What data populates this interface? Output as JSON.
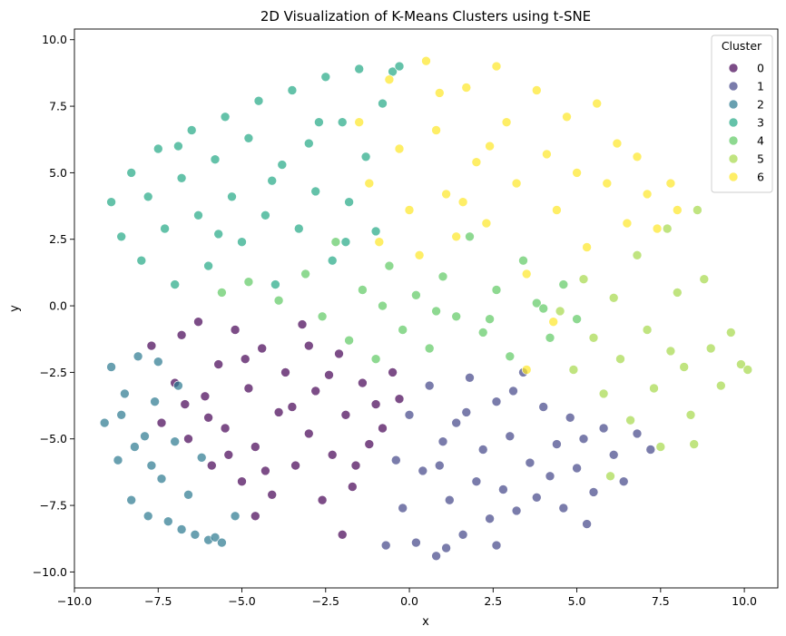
{
  "chart_data": {
    "type": "scatter",
    "title": "2D Visualization of K-Means Clusters using t-SNE",
    "xlabel": "x",
    "ylabel": "y",
    "xlim": [
      -10.0,
      11.0
    ],
    "ylim": [
      -10.6,
      10.4
    ],
    "xticks": [
      -10.0,
      -7.5,
      -5.0,
      -2.5,
      0.0,
      2.5,
      5.0,
      7.5,
      10.0
    ],
    "xtick_labels": [
      "−10.0",
      "−7.5",
      "−5.0",
      "−2.5",
      "0.0",
      "2.5",
      "5.0",
      "7.5",
      "10.0"
    ],
    "yticks": [
      -10.0,
      -7.5,
      -5.0,
      -2.5,
      0.0,
      2.5,
      5.0,
      7.5,
      10.0
    ],
    "ytick_labels": [
      "−10.0",
      "−7.5",
      "−5.0",
      "−2.5",
      "0.0",
      "2.5",
      "5.0",
      "7.5",
      "10.0"
    ],
    "grid": false,
    "legend": {
      "title": "Cluster",
      "placement": "top-right"
    },
    "series": [
      {
        "name": "0",
        "color": "#440154",
        "points": [
          [
            -7.7,
            -1.5
          ],
          [
            -7.4,
            -4.4
          ],
          [
            -7.0,
            -2.9
          ],
          [
            -6.8,
            -1.1
          ],
          [
            -6.6,
            -5.0
          ],
          [
            -6.3,
            -0.6
          ],
          [
            -6.1,
            -3.4
          ],
          [
            -5.9,
            -6.0
          ],
          [
            -5.7,
            -2.2
          ],
          [
            -5.5,
            -4.6
          ],
          [
            -5.2,
            -0.9
          ],
          [
            -5.0,
            -6.6
          ],
          [
            -4.8,
            -3.1
          ],
          [
            -4.6,
            -5.3
          ],
          [
            -4.4,
            -1.6
          ],
          [
            -4.1,
            -7.1
          ],
          [
            -3.9,
            -4.0
          ],
          [
            -3.7,
            -2.5
          ],
          [
            -3.4,
            -6.0
          ],
          [
            -3.2,
            -0.7
          ],
          [
            -3.0,
            -4.8
          ],
          [
            -2.8,
            -3.2
          ],
          [
            -2.6,
            -7.3
          ],
          [
            -2.3,
            -5.6
          ],
          [
            -2.1,
            -1.8
          ],
          [
            -1.9,
            -4.1
          ],
          [
            -1.7,
            -6.8
          ],
          [
            -1.4,
            -2.9
          ],
          [
            -1.2,
            -5.2
          ],
          [
            -1.0,
            -3.7
          ],
          [
            -0.8,
            -4.6
          ],
          [
            -0.5,
            -2.5
          ],
          [
            -0.3,
            -3.5
          ],
          [
            -6.0,
            -4.2
          ],
          [
            -4.9,
            -2.0
          ],
          [
            -3.5,
            -3.8
          ],
          [
            -2.4,
            -2.6
          ],
          [
            -5.4,
            -5.6
          ],
          [
            -4.3,
            -6.2
          ],
          [
            -6.7,
            -3.7
          ],
          [
            -3.0,
            -1.5
          ],
          [
            -1.6,
            -6.0
          ],
          [
            -2.0,
            -8.6
          ],
          [
            -4.6,
            -7.9
          ]
        ]
      },
      {
        "name": "1",
        "color": "#414487",
        "points": [
          [
            -0.4,
            -5.8
          ],
          [
            -0.2,
            -7.6
          ],
          [
            0.0,
            -4.1
          ],
          [
            0.2,
            -8.9
          ],
          [
            0.4,
            -6.2
          ],
          [
            0.6,
            -3.0
          ],
          [
            0.8,
            -9.4
          ],
          [
            1.0,
            -5.1
          ],
          [
            1.2,
            -7.3
          ],
          [
            1.4,
            -4.4
          ],
          [
            1.6,
            -8.6
          ],
          [
            1.8,
            -2.7
          ],
          [
            2.0,
            -6.6
          ],
          [
            2.2,
            -5.4
          ],
          [
            2.4,
            -8.0
          ],
          [
            2.6,
            -3.6
          ],
          [
            2.8,
            -6.9
          ],
          [
            3.0,
            -4.9
          ],
          [
            3.2,
            -7.7
          ],
          [
            3.4,
            -2.5
          ],
          [
            3.6,
            -5.9
          ],
          [
            3.8,
            -7.2
          ],
          [
            4.0,
            -3.8
          ],
          [
            4.2,
            -6.4
          ],
          [
            4.4,
            -5.2
          ],
          [
            4.6,
            -7.6
          ],
          [
            4.8,
            -4.2
          ],
          [
            5.0,
            -6.1
          ],
          [
            5.2,
            -5.0
          ],
          [
            5.5,
            -7.0
          ],
          [
            5.8,
            -4.6
          ],
          [
            6.1,
            -5.6
          ],
          [
            6.4,
            -6.6
          ],
          [
            6.8,
            -4.8
          ],
          [
            7.2,
            -5.4
          ],
          [
            1.1,
            -9.1
          ],
          [
            -0.7,
            -9.0
          ],
          [
            2.6,
            -9.0
          ],
          [
            0.9,
            -6.0
          ],
          [
            3.1,
            -3.2
          ],
          [
            1.7,
            -4.0
          ],
          [
            5.3,
            -8.2
          ]
        ]
      },
      {
        "name": "2",
        "color": "#2a788e",
        "points": [
          [
            -9.1,
            -4.4
          ],
          [
            -8.9,
            -2.3
          ],
          [
            -8.7,
            -5.8
          ],
          [
            -8.5,
            -3.3
          ],
          [
            -8.3,
            -7.3
          ],
          [
            -8.1,
            -1.9
          ],
          [
            -7.9,
            -4.9
          ],
          [
            -7.8,
            -7.9
          ],
          [
            -7.6,
            -3.6
          ],
          [
            -7.4,
            -6.5
          ],
          [
            -7.2,
            -8.1
          ],
          [
            -7.0,
            -5.1
          ],
          [
            -6.8,
            -8.4
          ],
          [
            -6.6,
            -7.1
          ],
          [
            -6.4,
            -8.6
          ],
          [
            -6.2,
            -5.7
          ],
          [
            -6.0,
            -8.8
          ],
          [
            -5.8,
            -8.7
          ],
          [
            -5.6,
            -8.9
          ],
          [
            -8.6,
            -4.1
          ],
          [
            -8.2,
            -5.3
          ],
          [
            -7.5,
            -2.1
          ],
          [
            -6.9,
            -3.0
          ],
          [
            -5.2,
            -7.9
          ],
          [
            -7.7,
            -6.0
          ]
        ]
      },
      {
        "name": "3",
        "color": "#22a884",
        "points": [
          [
            -8.9,
            3.9
          ],
          [
            -8.6,
            2.6
          ],
          [
            -8.3,
            5.0
          ],
          [
            -8.0,
            1.7
          ],
          [
            -7.8,
            4.1
          ],
          [
            -7.5,
            5.9
          ],
          [
            -7.3,
            2.9
          ],
          [
            -7.0,
            0.8
          ],
          [
            -6.8,
            4.8
          ],
          [
            -6.5,
            6.6
          ],
          [
            -6.3,
            3.4
          ],
          [
            -6.0,
            1.5
          ],
          [
            -5.8,
            5.5
          ],
          [
            -5.5,
            7.1
          ],
          [
            -5.3,
            4.1
          ],
          [
            -5.0,
            2.4
          ],
          [
            -4.8,
            6.3
          ],
          [
            -4.5,
            7.7
          ],
          [
            -4.3,
            3.4
          ],
          [
            -4.0,
            0.8
          ],
          [
            -3.8,
            5.3
          ],
          [
            -3.5,
            8.1
          ],
          [
            -3.3,
            2.9
          ],
          [
            -3.0,
            6.1
          ],
          [
            -2.8,
            4.3
          ],
          [
            -2.5,
            8.6
          ],
          [
            -2.3,
            1.7
          ],
          [
            -2.0,
            6.9
          ],
          [
            -1.8,
            3.9
          ],
          [
            -1.5,
            8.9
          ],
          [
            -1.3,
            5.6
          ],
          [
            -1.0,
            2.8
          ],
          [
            -0.8,
            7.6
          ],
          [
            -0.5,
            8.8
          ],
          [
            -0.3,
            9.0
          ],
          [
            -6.9,
            6.0
          ],
          [
            -5.7,
            2.7
          ],
          [
            -4.1,
            4.7
          ],
          [
            -2.7,
            6.9
          ],
          [
            -1.9,
            2.4
          ]
        ]
      },
      {
        "name": "4",
        "color": "#5ec962",
        "points": [
          [
            -5.6,
            0.5
          ],
          [
            -4.8,
            0.9
          ],
          [
            -3.9,
            0.2
          ],
          [
            -3.1,
            1.2
          ],
          [
            -2.6,
            -0.4
          ],
          [
            -2.2,
            2.4
          ],
          [
            -1.8,
            -1.3
          ],
          [
            -1.4,
            0.6
          ],
          [
            -1.0,
            -2.0
          ],
          [
            -0.6,
            1.5
          ],
          [
            -0.2,
            -0.9
          ],
          [
            0.2,
            0.4
          ],
          [
            0.6,
            -1.6
          ],
          [
            1.0,
            1.1
          ],
          [
            1.4,
            -0.4
          ],
          [
            1.8,
            2.6
          ],
          [
            2.2,
            -1.0
          ],
          [
            2.6,
            0.6
          ],
          [
            3.0,
            -1.9
          ],
          [
            3.4,
            1.7
          ],
          [
            3.8,
            0.1
          ],
          [
            4.2,
            -1.2
          ],
          [
            4.6,
            0.8
          ],
          [
            5.0,
            -0.5
          ],
          [
            -0.8,
            0.0
          ],
          [
            0.8,
            -0.2
          ],
          [
            2.4,
            -0.5
          ],
          [
            4.0,
            -0.1
          ]
        ]
      },
      {
        "name": "5",
        "color": "#a5d84a",
        "points": [
          [
            4.5,
            -0.2
          ],
          [
            4.9,
            -2.4
          ],
          [
            5.2,
            1.0
          ],
          [
            5.5,
            -1.2
          ],
          [
            5.8,
            -3.3
          ],
          [
            6.1,
            0.3
          ],
          [
            6.3,
            -2.0
          ],
          [
            6.6,
            -4.3
          ],
          [
            6.8,
            1.9
          ],
          [
            7.1,
            -0.9
          ],
          [
            7.3,
            -3.1
          ],
          [
            7.5,
            -5.3
          ],
          [
            7.7,
            2.9
          ],
          [
            8.0,
            0.5
          ],
          [
            8.2,
            -2.3
          ],
          [
            8.4,
            -4.1
          ],
          [
            8.6,
            3.6
          ],
          [
            8.8,
            1.0
          ],
          [
            9.0,
            -1.6
          ],
          [
            9.3,
            -3.0
          ],
          [
            9.6,
            -1.0
          ],
          [
            9.9,
            -2.2
          ],
          [
            10.1,
            -2.4
          ],
          [
            6.0,
            -6.4
          ],
          [
            8.5,
            -5.2
          ],
          [
            7.8,
            -1.7
          ]
        ]
      },
      {
        "name": "6",
        "color": "#fde725",
        "points": [
          [
            -1.5,
            6.9
          ],
          [
            -1.2,
            4.6
          ],
          [
            -0.9,
            2.4
          ],
          [
            -0.6,
            8.5
          ],
          [
            -0.3,
            5.9
          ],
          [
            0.0,
            3.6
          ],
          [
            0.3,
            1.9
          ],
          [
            0.5,
            9.2
          ],
          [
            0.8,
            6.6
          ],
          [
            1.1,
            4.2
          ],
          [
            1.4,
            2.6
          ],
          [
            1.7,
            8.2
          ],
          [
            2.0,
            5.4
          ],
          [
            2.3,
            3.1
          ],
          [
            2.6,
            9.0
          ],
          [
            2.9,
            6.9
          ],
          [
            3.2,
            4.6
          ],
          [
            3.5,
            1.2
          ],
          [
            3.8,
            8.1
          ],
          [
            4.1,
            5.7
          ],
          [
            4.4,
            3.6
          ],
          [
            4.7,
            7.1
          ],
          [
            5.0,
            5.0
          ],
          [
            5.3,
            2.2
          ],
          [
            5.6,
            7.6
          ],
          [
            5.9,
            4.6
          ],
          [
            6.2,
            6.1
          ],
          [
            6.5,
            3.1
          ],
          [
            6.8,
            5.6
          ],
          [
            7.1,
            4.2
          ],
          [
            7.4,
            2.9
          ],
          [
            7.8,
            4.6
          ],
          [
            8.0,
            3.6
          ],
          [
            4.3,
            -0.6
          ],
          [
            3.5,
            -2.4
          ],
          [
            0.9,
            8.0
          ],
          [
            2.4,
            6.0
          ],
          [
            1.6,
            3.9
          ]
        ]
      }
    ]
  }
}
